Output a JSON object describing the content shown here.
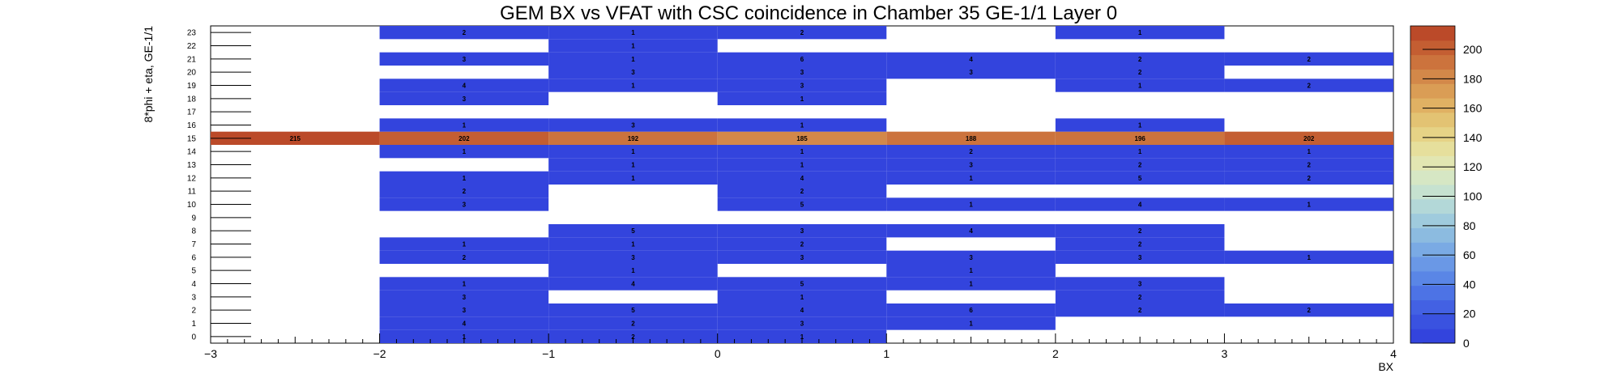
{
  "chart_data": {
    "type": "heatmap",
    "title": "GEM BX vs VFAT with CSC coincidence in Chamber 35 GE-1/1 Layer 0",
    "xlabel": "BX",
    "ylabel": "8*phi + eta, GE-1/1",
    "x_edges": [
      -3,
      -2,
      -1,
      0,
      1,
      2,
      3,
      4
    ],
    "x_tick_labels": [
      "−3",
      "−2",
      "−1",
      "0",
      "1",
      "2",
      "3",
      "4"
    ],
    "y_categories": [
      "0",
      "1",
      "2",
      "3",
      "4",
      "5",
      "6",
      "7",
      "8",
      "9",
      "10",
      "11",
      "12",
      "13",
      "14",
      "15",
      "16",
      "17",
      "18",
      "19",
      "20",
      "21",
      "22",
      "23"
    ],
    "zlim": [
      0,
      216
    ],
    "z_ticks": [
      "0",
      "20",
      "40",
      "60",
      "80",
      "100",
      "120",
      "140",
      "160",
      "180",
      "200"
    ],
    "grid": false,
    "cells": [
      {
        "x": -1.5,
        "y": 0,
        "value": 1
      },
      {
        "x": -0.5,
        "y": 0,
        "value": 2
      },
      {
        "x": 0.5,
        "y": 0,
        "value": 1
      },
      {
        "x": -1.5,
        "y": 1,
        "value": 4
      },
      {
        "x": -0.5,
        "y": 1,
        "value": 2
      },
      {
        "x": 0.5,
        "y": 1,
        "value": 3
      },
      {
        "x": 1.5,
        "y": 1,
        "value": 1
      },
      {
        "x": -1.5,
        "y": 2,
        "value": 3
      },
      {
        "x": -0.5,
        "y": 2,
        "value": 5
      },
      {
        "x": 0.5,
        "y": 2,
        "value": 4
      },
      {
        "x": 1.5,
        "y": 2,
        "value": 6
      },
      {
        "x": 2.5,
        "y": 2,
        "value": 2
      },
      {
        "x": 3.5,
        "y": 2,
        "value": 2
      },
      {
        "x": -1.5,
        "y": 3,
        "value": 3
      },
      {
        "x": 0.5,
        "y": 3,
        "value": 1
      },
      {
        "x": 2.5,
        "y": 3,
        "value": 2
      },
      {
        "x": -1.5,
        "y": 4,
        "value": 1
      },
      {
        "x": -0.5,
        "y": 4,
        "value": 4
      },
      {
        "x": 0.5,
        "y": 4,
        "value": 5
      },
      {
        "x": 1.5,
        "y": 4,
        "value": 1
      },
      {
        "x": 2.5,
        "y": 4,
        "value": 3
      },
      {
        "x": -0.5,
        "y": 5,
        "value": 1
      },
      {
        "x": 1.5,
        "y": 5,
        "value": 1
      },
      {
        "x": -1.5,
        "y": 6,
        "value": 2
      },
      {
        "x": -0.5,
        "y": 6,
        "value": 3
      },
      {
        "x": 0.5,
        "y": 6,
        "value": 3
      },
      {
        "x": 1.5,
        "y": 6,
        "value": 3
      },
      {
        "x": 2.5,
        "y": 6,
        "value": 3
      },
      {
        "x": 3.5,
        "y": 6,
        "value": 1
      },
      {
        "x": -1.5,
        "y": 7,
        "value": 1
      },
      {
        "x": -0.5,
        "y": 7,
        "value": 1
      },
      {
        "x": 0.5,
        "y": 7,
        "value": 2
      },
      {
        "x": 2.5,
        "y": 7,
        "value": 2
      },
      {
        "x": -0.5,
        "y": 8,
        "value": 5
      },
      {
        "x": 0.5,
        "y": 8,
        "value": 3
      },
      {
        "x": 1.5,
        "y": 8,
        "value": 4
      },
      {
        "x": 2.5,
        "y": 8,
        "value": 2
      },
      {
        "x": -1.5,
        "y": 10,
        "value": 3
      },
      {
        "x": 0.5,
        "y": 10,
        "value": 5
      },
      {
        "x": 1.5,
        "y": 10,
        "value": 1
      },
      {
        "x": 2.5,
        "y": 10,
        "value": 4
      },
      {
        "x": 3.5,
        "y": 10,
        "value": 1
      },
      {
        "x": -1.5,
        "y": 11,
        "value": 2
      },
      {
        "x": 0.5,
        "y": 11,
        "value": 2
      },
      {
        "x": -1.5,
        "y": 12,
        "value": 1
      },
      {
        "x": -0.5,
        "y": 12,
        "value": 1
      },
      {
        "x": 0.5,
        "y": 12,
        "value": 4
      },
      {
        "x": 1.5,
        "y": 12,
        "value": 1
      },
      {
        "x": 2.5,
        "y": 12,
        "value": 5
      },
      {
        "x": 3.5,
        "y": 12,
        "value": 2
      },
      {
        "x": -0.5,
        "y": 13,
        "value": 1
      },
      {
        "x": 0.5,
        "y": 13,
        "value": 1
      },
      {
        "x": 1.5,
        "y": 13,
        "value": 3
      },
      {
        "x": 2.5,
        "y": 13,
        "value": 2
      },
      {
        "x": 3.5,
        "y": 13,
        "value": 2
      },
      {
        "x": -1.5,
        "y": 14,
        "value": 1
      },
      {
        "x": -0.5,
        "y": 14,
        "value": 1
      },
      {
        "x": 0.5,
        "y": 14,
        "value": 1
      },
      {
        "x": 1.5,
        "y": 14,
        "value": 2
      },
      {
        "x": 2.5,
        "y": 14,
        "value": 1
      },
      {
        "x": 3.5,
        "y": 14,
        "value": 1
      },
      {
        "x": -2.5,
        "y": 15,
        "value": 215
      },
      {
        "x": -1.5,
        "y": 15,
        "value": 202
      },
      {
        "x": -0.5,
        "y": 15,
        "value": 192
      },
      {
        "x": 0.5,
        "y": 15,
        "value": 185
      },
      {
        "x": 1.5,
        "y": 15,
        "value": 188
      },
      {
        "x": 2.5,
        "y": 15,
        "value": 196
      },
      {
        "x": 3.5,
        "y": 15,
        "value": 202
      },
      {
        "x": -1.5,
        "y": 16,
        "value": 1
      },
      {
        "x": -0.5,
        "y": 16,
        "value": 3
      },
      {
        "x": 0.5,
        "y": 16,
        "value": 1
      },
      {
        "x": 2.5,
        "y": 16,
        "value": 1
      },
      {
        "x": -1.5,
        "y": 18,
        "value": 3
      },
      {
        "x": 0.5,
        "y": 18,
        "value": 1
      },
      {
        "x": -1.5,
        "y": 19,
        "value": 4
      },
      {
        "x": -0.5,
        "y": 19,
        "value": 1
      },
      {
        "x": 0.5,
        "y": 19,
        "value": 3
      },
      {
        "x": 2.5,
        "y": 19,
        "value": 1
      },
      {
        "x": 3.5,
        "y": 19,
        "value": 2
      },
      {
        "x": -0.5,
        "y": 20,
        "value": 3
      },
      {
        "x": 0.5,
        "y": 20,
        "value": 3
      },
      {
        "x": 1.5,
        "y": 20,
        "value": 3
      },
      {
        "x": 2.5,
        "y": 20,
        "value": 2
      },
      {
        "x": -1.5,
        "y": 21,
        "value": 3
      },
      {
        "x": -0.5,
        "y": 21,
        "value": 1
      },
      {
        "x": 0.5,
        "y": 21,
        "value": 6
      },
      {
        "x": 1.5,
        "y": 21,
        "value": 4
      },
      {
        "x": 2.5,
        "y": 21,
        "value": 2
      },
      {
        "x": 3.5,
        "y": 21,
        "value": 2
      },
      {
        "x": -0.5,
        "y": 22,
        "value": 1
      },
      {
        "x": -1.5,
        "y": 23,
        "value": 2
      },
      {
        "x": -0.5,
        "y": 23,
        "value": 1
      },
      {
        "x": 0.5,
        "y": 23,
        "value": 2
      },
      {
        "x": 2.5,
        "y": 23,
        "value": 1
      }
    ],
    "palette": [
      "#3344dd",
      "#3a52e0",
      "#4361e3",
      "#4d73e5",
      "#5a86e6",
      "#6a98e6",
      "#7aaae4",
      "#8cbbe0",
      "#9fcbdd",
      "#b3d8d8",
      "#c6e2d0",
      "#d6e7c4",
      "#e2e6b2",
      "#e6df9c",
      "#e6d386",
      "#e3c373",
      "#e0b163",
      "#da9d55",
      "#d38849",
      "#cc733d",
      "#c45e32",
      "#bb4a29"
    ]
  }
}
